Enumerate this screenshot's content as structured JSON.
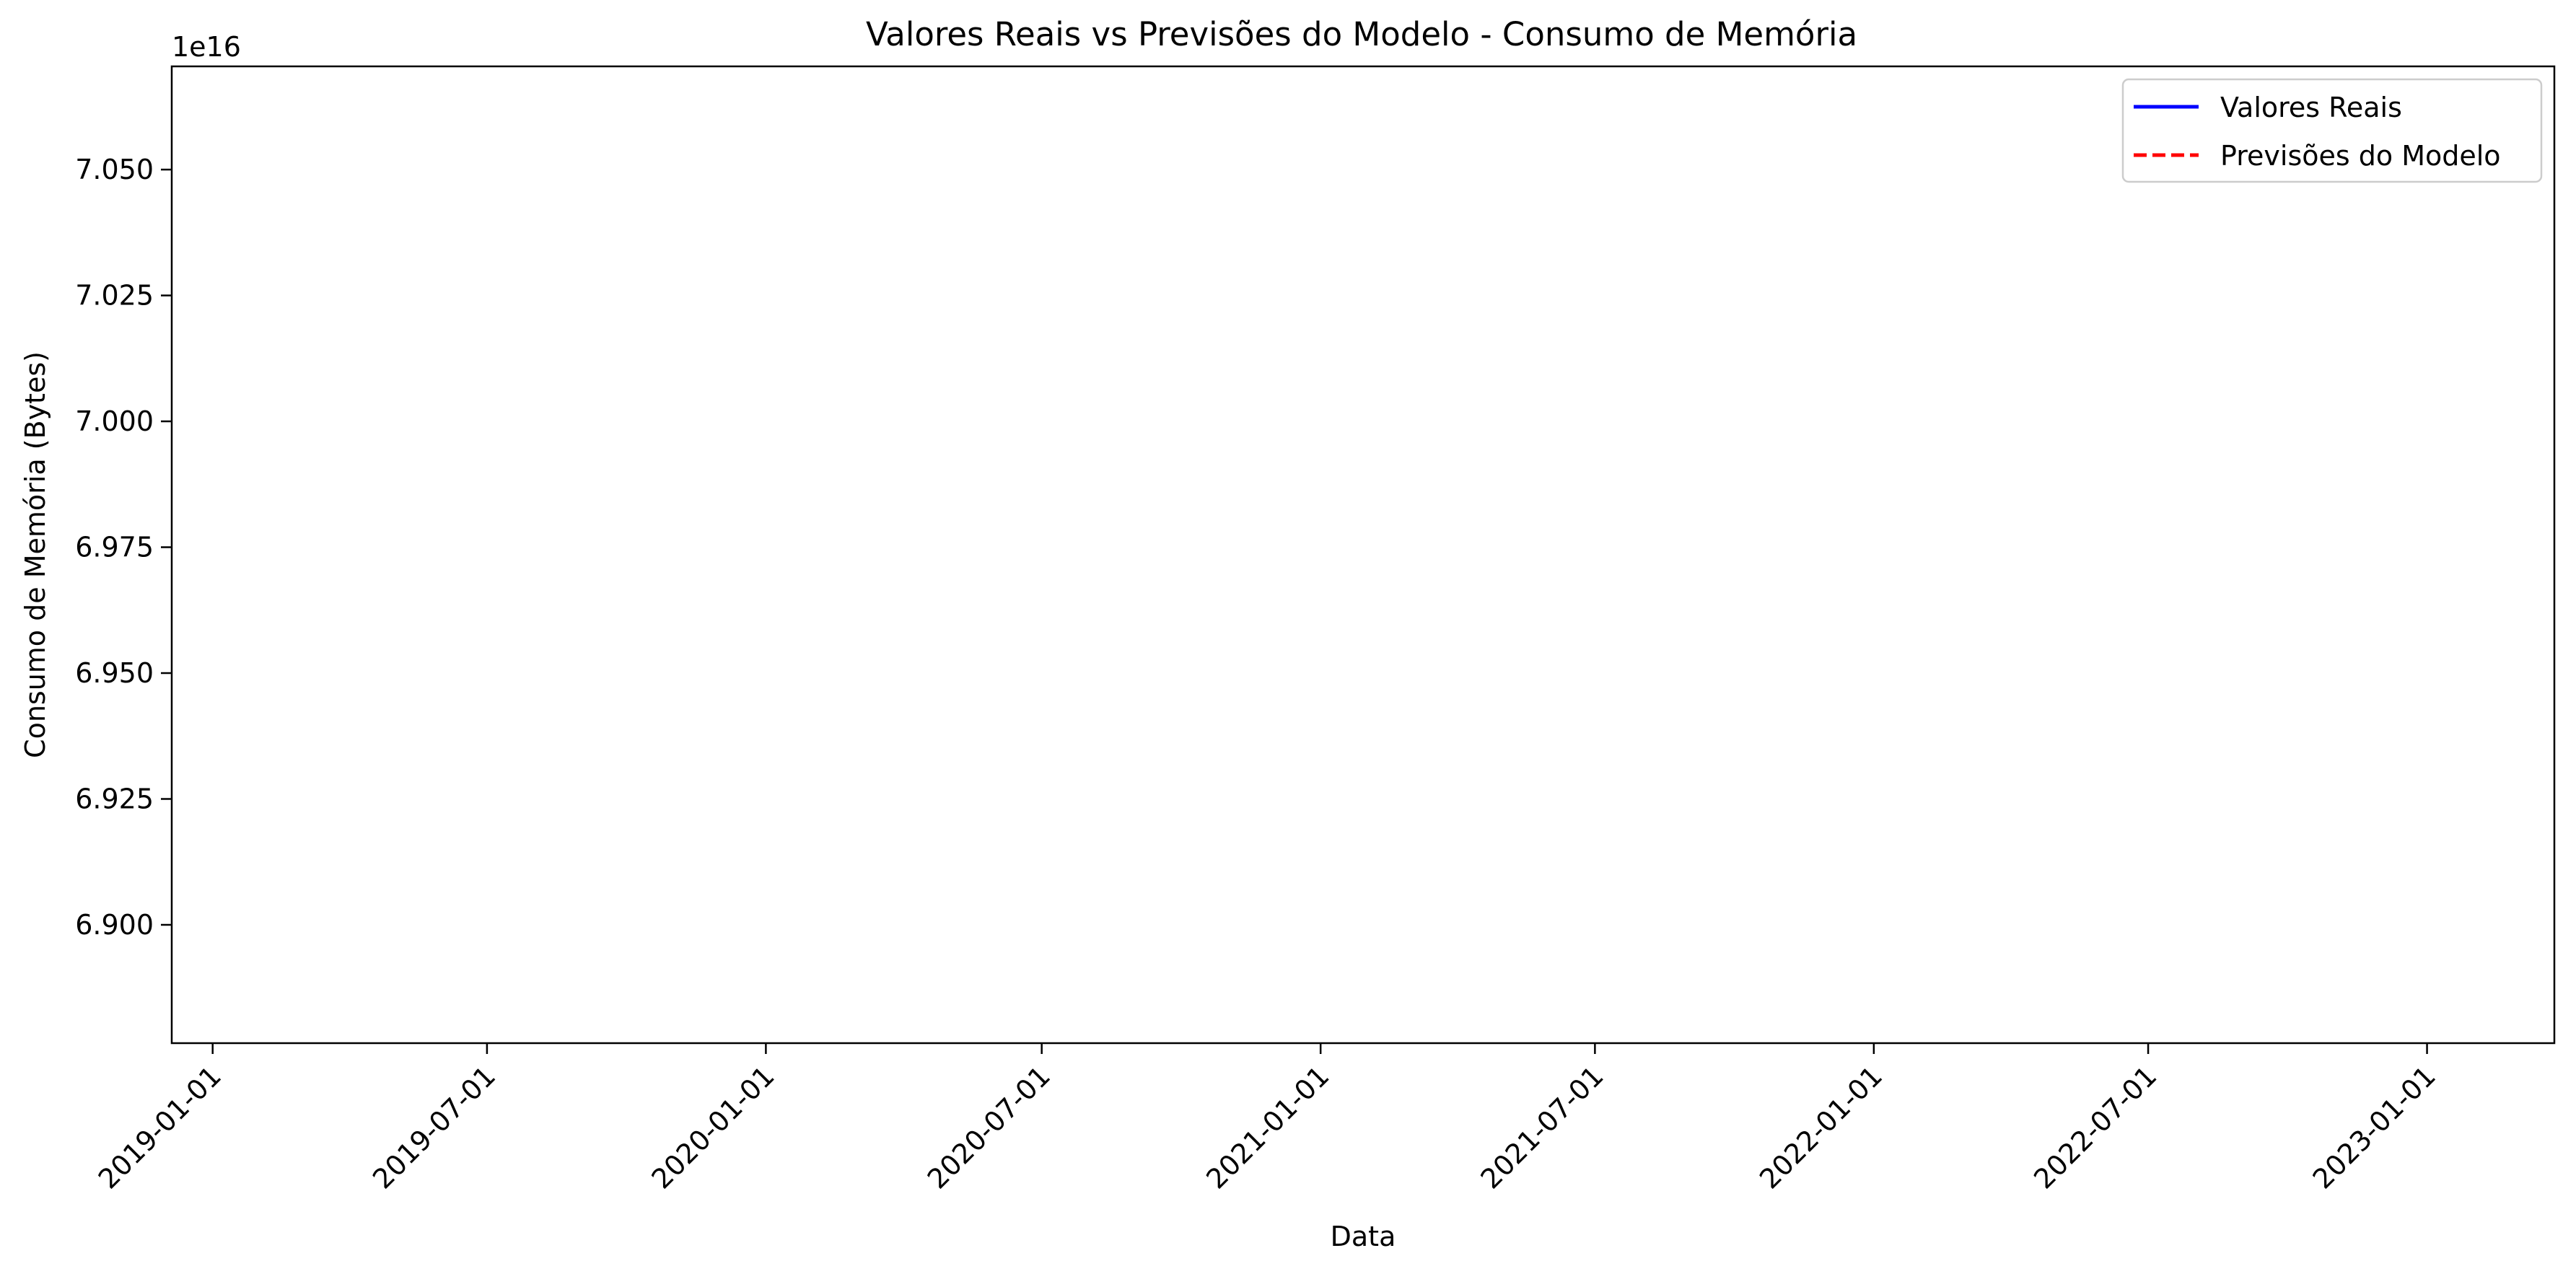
{
  "chart_data": {
    "type": "line",
    "title": "Valores Reais vs Previsões do Modelo - Consumo de Memória",
    "xlabel": "Data",
    "ylabel": "Consumo de Memória (Bytes)",
    "y_offset_text": "1e16",
    "x_ticks": [
      "2019-01-01",
      "2019-07-01",
      "2020-01-01",
      "2020-07-01",
      "2021-01-01",
      "2021-07-01",
      "2022-01-01",
      "2022-07-01",
      "2023-01-01"
    ],
    "xlim": [
      "2018-12-05",
      "2023-03-26"
    ],
    "y_ticks": [
      6.9,
      6.925,
      6.95,
      6.975,
      7.0,
      7.025,
      7.05
    ],
    "y_tick_labels": [
      "6.900",
      "6.925",
      "6.950",
      "6.975",
      "7.000",
      "7.025",
      "7.050"
    ],
    "ylim": [
      6.8765,
      7.0705
    ],
    "grid": false,
    "legend_position": "top-right",
    "series": [
      {
        "name": "Valores Reais",
        "color": "#0000ff",
        "style": "solid",
        "x": [],
        "y": []
      },
      {
        "name": "Previsões do Modelo",
        "color": "#ff0000",
        "style": "dashed",
        "x": [],
        "y": []
      }
    ]
  }
}
